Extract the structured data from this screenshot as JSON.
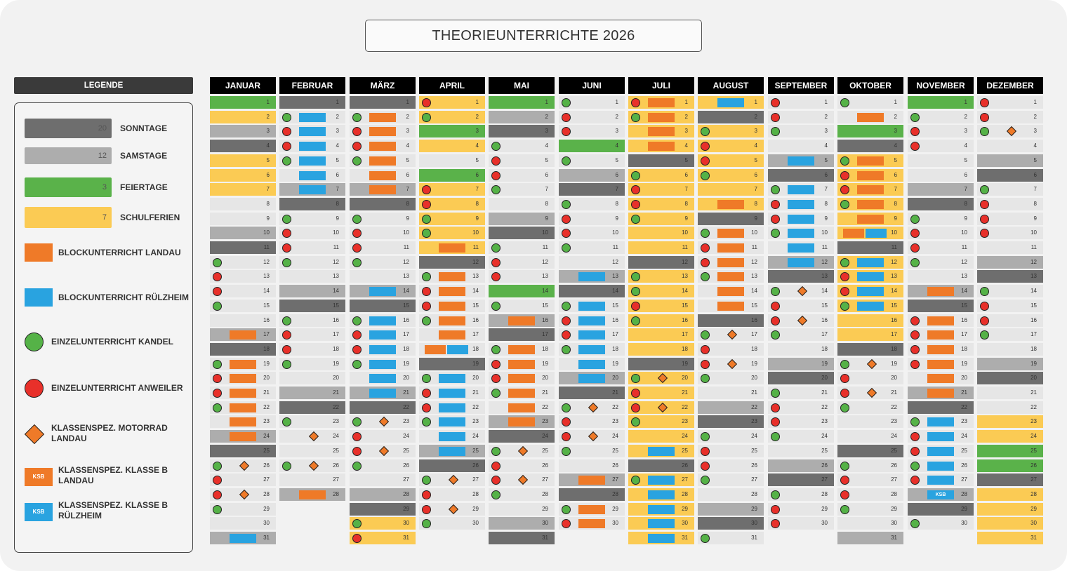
{
  "title": "THEORIEUNTERRICHTE 2026",
  "legend": {
    "heading": "LEGENDE",
    "items": [
      {
        "key": "sun",
        "label": "SONNTAGE",
        "value": "20",
        "color": "#6e6e6e"
      },
      {
        "key": "sat",
        "label": "SAMSTAGE",
        "value": "12",
        "color": "#adadad"
      },
      {
        "key": "hol",
        "label": "FEIERTAGE",
        "value": "3",
        "color": "#5ab24a"
      },
      {
        "key": "fer",
        "label": "SCHULFERIEN",
        "value": "7",
        "color": "#fbcb54"
      },
      {
        "key": "orange",
        "label": "BLOCKUNTERRICHT LANDAU",
        "color": "#ef7a28"
      },
      {
        "key": "blue",
        "label": "BLOCKUNTERRICHT RÜLZHEIM",
        "color": "#29a3e0"
      },
      {
        "key": "green",
        "label": "EINZELUNTERRICHT KANDEL",
        "color": "#55b247"
      },
      {
        "key": "red",
        "label": "EINZELUNTERRICHT ANWEILER",
        "color": "#e8302a"
      },
      {
        "key": "diamond",
        "label": "KLASSENSPEZ. MOTORRAD LANDAU",
        "color": "#ef7a28"
      },
      {
        "key": "ksb_orange",
        "label": "KLASSENSPEZ. KLASSE B LANDAU",
        "badge": "KSB",
        "color": "#ef7a28"
      },
      {
        "key": "ksb_blue",
        "label": "KLASSENSPEZ. KLASSE B RÜLZHEIM",
        "badge": "KSB",
        "color": "#29a3e0"
      }
    ]
  },
  "months": [
    {
      "name": "JANUAR",
      "days": 31,
      "sun": [
        4,
        11,
        18,
        25
      ],
      "sat": [
        3,
        10,
        17,
        24,
        31
      ],
      "hol": [
        1
      ],
      "fer": [
        2,
        5,
        6,
        7
      ],
      "green": [
        12,
        15,
        19,
        22,
        26,
        29
      ],
      "red": [
        13,
        14,
        20,
        21,
        27,
        28
      ],
      "orange": [
        17,
        19,
        20,
        21,
        22,
        23,
        24
      ],
      "blue": [
        31
      ],
      "diamond": [
        26,
        28
      ],
      "ksb": []
    },
    {
      "name": "FEBRUAR",
      "days": 28,
      "sun": [
        1,
        8,
        15,
        22
      ],
      "sat": [
        7,
        14,
        21,
        28
      ],
      "hol": [],
      "fer": [],
      "green": [
        2,
        5,
        9,
        12,
        16,
        19,
        23,
        26
      ],
      "red": [
        3,
        4,
        10,
        11,
        17,
        18
      ],
      "orange": [
        28
      ],
      "blue": [
        2,
        3,
        4,
        5,
        6,
        7
      ],
      "diamond": [
        24,
        26
      ],
      "ksb": []
    },
    {
      "name": "MÄRZ",
      "days": 31,
      "sun": [
        1,
        8,
        15,
        22,
        29
      ],
      "sat": [
        7,
        14,
        21,
        28
      ],
      "hol": [],
      "fer": [
        30,
        31
      ],
      "green": [
        2,
        5,
        9,
        12,
        16,
        19,
        23,
        26,
        30
      ],
      "red": [
        3,
        4,
        10,
        11,
        17,
        18,
        24,
        25,
        31
      ],
      "orange": [
        2,
        3,
        4,
        5,
        6,
        7
      ],
      "blue": [
        14,
        16,
        17,
        18,
        19,
        20,
        21
      ],
      "diamond": [
        23,
        25
      ],
      "ksb": []
    },
    {
      "name": "APRIL",
      "days": 30,
      "sun": [
        12,
        19,
        26
      ],
      "sat": [
        25
      ],
      "hol": [
        3,
        6
      ],
      "fer": [
        1,
        2,
        4,
        7,
        8,
        9,
        10,
        11
      ],
      "green": [
        2,
        9,
        10,
        13,
        16,
        20,
        23,
        27,
        30
      ],
      "red": [
        1,
        7,
        8,
        14,
        15,
        21,
        22,
        28,
        29
      ],
      "orange": [
        11,
        13,
        14,
        15,
        16,
        17,
        18
      ],
      "blue": [
        18,
        20,
        21,
        22,
        23,
        24,
        25
      ],
      "diamond": [
        27,
        29
      ],
      "ksb": []
    },
    {
      "name": "MAI",
      "days": 31,
      "sun": [
        3,
        10,
        17,
        24,
        31
      ],
      "sat": [
        2,
        9,
        16,
        23,
        30
      ],
      "hol": [
        1,
        14
      ],
      "fer": [],
      "green": [
        4,
        7,
        11,
        15,
        18,
        21,
        25,
        28
      ],
      "red": [
        5,
        6,
        12,
        13,
        19,
        20,
        26,
        27
      ],
      "orange": [
        16,
        18,
        19,
        20,
        21,
        22,
        23
      ],
      "blue": [],
      "diamond": [
        25,
        27
      ],
      "ksb": []
    },
    {
      "name": "JUNI",
      "days": 30,
      "sun": [
        7,
        14,
        21,
        28
      ],
      "sat": [
        6,
        13,
        20,
        27
      ],
      "hol": [
        4
      ],
      "fer": [],
      "green": [
        1,
        5,
        8,
        11,
        15,
        18,
        22,
        25,
        29
      ],
      "red": [
        2,
        3,
        9,
        10,
        16,
        17,
        23,
        24,
        30
      ],
      "orange": [
        27,
        29,
        30
      ],
      "blue": [
        13,
        15,
        16,
        17,
        18,
        19,
        20
      ],
      "diamond": [
        22,
        24
      ],
      "ksb": []
    },
    {
      "name": "JULI",
      "days": 31,
      "sun": [
        5,
        12,
        19,
        26
      ],
      "sat": [],
      "hol": [],
      "fer": [
        1,
        2,
        3,
        4,
        6,
        7,
        8,
        9,
        10,
        11,
        13,
        14,
        15,
        16,
        17,
        18,
        20,
        21,
        22,
        23,
        24,
        25,
        27,
        28,
        29,
        30,
        31
      ],
      "green": [
        2,
        6,
        9,
        13,
        14,
        16,
        20,
        23,
        27
      ],
      "red": [
        1,
        7,
        8,
        15,
        21,
        22
      ],
      "orange": [
        1,
        2,
        3,
        4
      ],
      "blue": [
        25,
        27,
        28,
        29,
        30,
        31
      ],
      "diamond": [
        20,
        22
      ],
      "ksb": []
    },
    {
      "name": "AUGUST",
      "days": 31,
      "sun": [
        2,
        9,
        16,
        23,
        30
      ],
      "sat": [
        22,
        29
      ],
      "hol": [],
      "fer": [
        1,
        3,
        4,
        5,
        6,
        7,
        8
      ],
      "green": [
        3,
        6,
        10,
        13,
        17,
        20,
        24,
        27,
        31
      ],
      "red": [
        4,
        5,
        11,
        12,
        18,
        19,
        25,
        26
      ],
      "orange": [
        8,
        10,
        11,
        12,
        13,
        14,
        15
      ],
      "blue": [
        1
      ],
      "diamond": [
        17,
        19
      ],
      "ksb": []
    },
    {
      "name": "SEPTEMBER",
      "days": 30,
      "sun": [
        6,
        13,
        20,
        27
      ],
      "sat": [
        5,
        12,
        19,
        26
      ],
      "hol": [],
      "fer": [],
      "green": [
        3,
        7,
        10,
        14,
        17,
        21,
        24,
        28
      ],
      "red": [
        1,
        2,
        8,
        9,
        15,
        16,
        22,
        23,
        29,
        30
      ],
      "orange": [],
      "blue": [
        5,
        7,
        8,
        9,
        10,
        11,
        12
      ],
      "diamond": [
        14,
        16
      ],
      "ksb": []
    },
    {
      "name": "OKTOBER",
      "days": 31,
      "sun": [
        4,
        11,
        18,
        25
      ],
      "sat": [
        31
      ],
      "hol": [
        3
      ],
      "fer": [
        5,
        6,
        7,
        8,
        9,
        10,
        12,
        13,
        14,
        15,
        16,
        17
      ],
      "green": [
        1,
        5,
        8,
        12,
        15,
        19,
        22,
        26,
        29
      ],
      "red": [
        6,
        7,
        13,
        14,
        20,
        21,
        27,
        28
      ],
      "orange": [
        2,
        5,
        6,
        7,
        8,
        9,
        10
      ],
      "blue": [
        10,
        12,
        13,
        14,
        15
      ],
      "diamond": [
        19,
        21
      ],
      "ksb": []
    },
    {
      "name": "NOVEMBER",
      "days": 30,
      "sun": [
        1,
        8,
        15,
        22,
        29
      ],
      "sat": [
        7,
        14,
        21,
        28
      ],
      "hol": [
        1
      ],
      "fer": [],
      "green": [
        2,
        9,
        12,
        23,
        26,
        30
      ],
      "red": [
        3,
        4,
        10,
        11,
        16,
        17,
        18,
        19,
        24,
        25,
        27
      ],
      "orange": [
        14,
        16,
        17,
        18,
        19,
        20,
        21
      ],
      "blue": [
        23,
        24,
        25,
        26,
        27,
        28
      ],
      "diamond": [],
      "ksb": [
        28
      ]
    },
    {
      "name": "DEZEMBER",
      "days": 31,
      "sun": [
        6,
        13,
        20,
        27
      ],
      "sat": [
        5,
        12,
        19
      ],
      "hol": [
        25,
        26
      ],
      "fer": [
        23,
        24,
        28,
        29,
        30,
        31
      ],
      "green": [
        3,
        7,
        14,
        17
      ],
      "red": [
        1,
        2,
        8,
        9,
        10,
        15,
        16
      ],
      "orange": [],
      "blue": [],
      "diamond": [
        3
      ],
      "ksb": []
    }
  ]
}
